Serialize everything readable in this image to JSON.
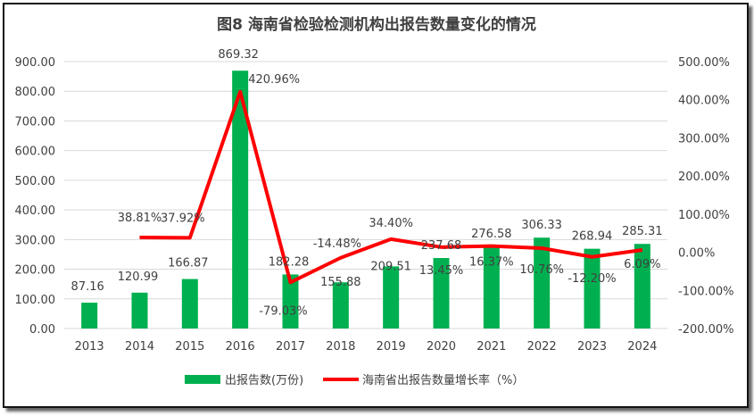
{
  "chart_data": {
    "type": "bar+line",
    "title": "图8 海南省检验检测机构出报告数量变化的情况",
    "categories": [
      "2013",
      "2014",
      "2015",
      "2016",
      "2017",
      "2018",
      "2019",
      "2020",
      "2021",
      "2022",
      "2023",
      "2024"
    ],
    "series": [
      {
        "name": "出报告数(万份)",
        "type": "bar",
        "axis": "left",
        "color": "#00b050",
        "values": [
          87.16,
          120.99,
          166.87,
          869.32,
          182.28,
          155.88,
          209.51,
          237.68,
          276.58,
          306.33,
          268.94,
          285.31
        ],
        "labels": [
          "87.16",
          "120.99",
          "166.87",
          "869.32",
          "182.28",
          "155.88",
          "209.51",
          "237.68",
          "276.58",
          "306.33",
          "268.94",
          "285.31"
        ]
      },
      {
        "name": "海南省出报告数量增长率（%）",
        "type": "line",
        "axis": "right",
        "color": "#ff0000",
        "values": [
          null,
          38.81,
          37.92,
          420.96,
          -79.03,
          -14.48,
          34.4,
          13.45,
          16.37,
          10.76,
          -12.2,
          6.09
        ],
        "labels": [
          "",
          "38.81%",
          "37.92%",
          "420.96%",
          "-79.03%",
          "-14.48%",
          "34.40%",
          "13.45%",
          "16.37%",
          "10.76%",
          "-12.20%",
          "6.09%"
        ]
      }
    ],
    "left_axis": {
      "ylim": [
        0,
        900
      ],
      "ticks": [
        "0.00",
        "100.00",
        "200.00",
        "300.00",
        "400.00",
        "500.00",
        "600.00",
        "700.00",
        "800.00",
        "900.00"
      ]
    },
    "right_axis": {
      "ylim": [
        -200,
        500
      ],
      "ticks": [
        "-200.00%",
        "-100.00%",
        "0.00%",
        "100.00%",
        "200.00%",
        "300.00%",
        "400.00%",
        "500.00%"
      ]
    },
    "grid": true,
    "legend": "bottom"
  }
}
